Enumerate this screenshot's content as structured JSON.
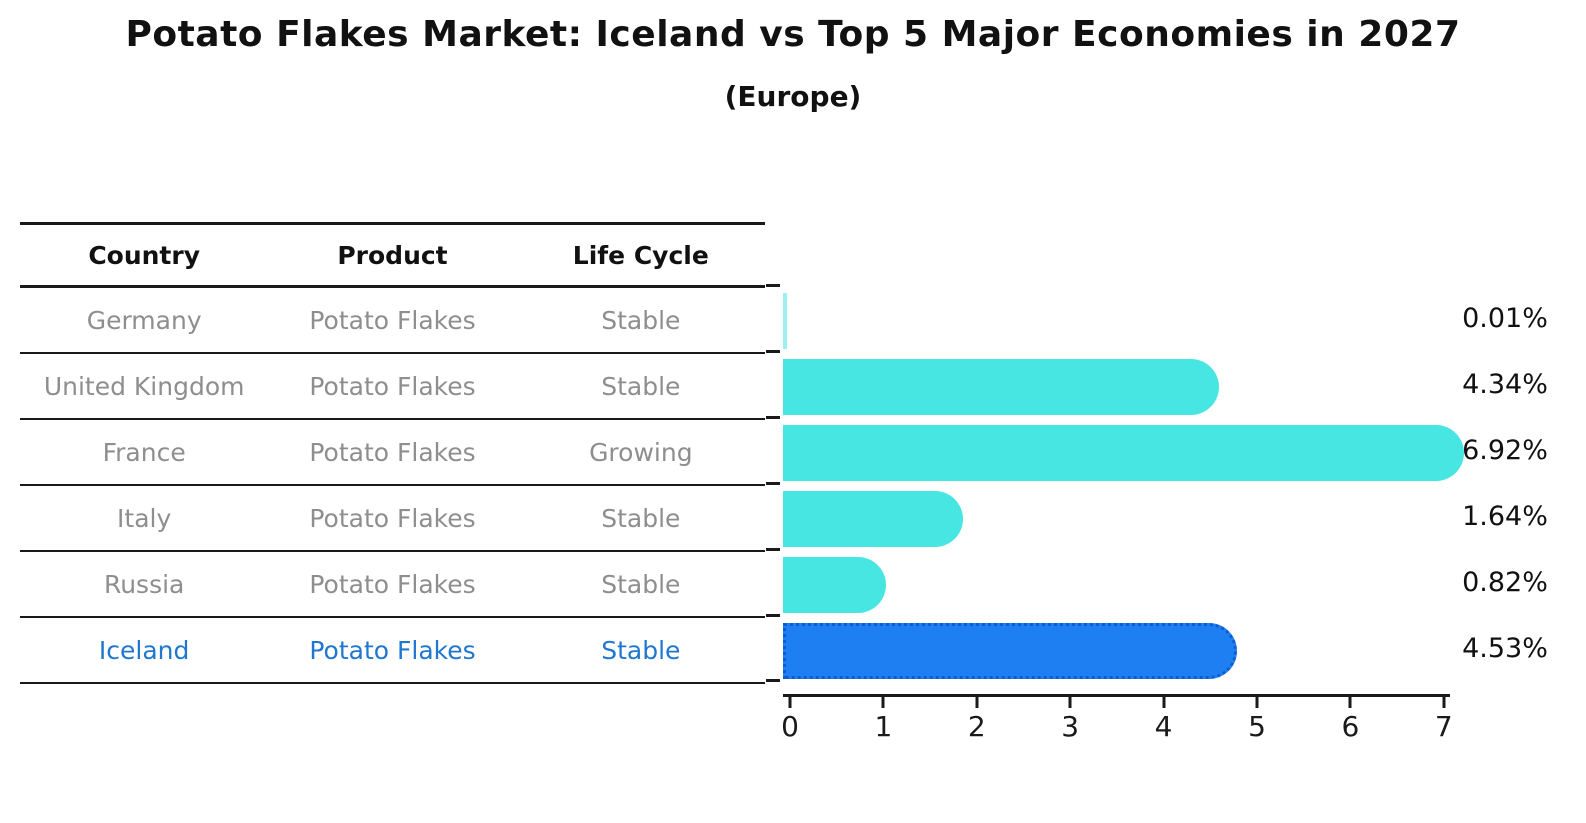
{
  "title": "Potato Flakes Market: Iceland vs Top 5 Major Economies in 2027",
  "subtitle": "(Europe)",
  "table": {
    "headers": {
      "country": "Country",
      "product": "Product",
      "life_cycle": "Life Cycle"
    },
    "rows": [
      {
        "country": "Germany",
        "product": "Potato Flakes",
        "life_cycle": "Stable",
        "highlighted": false
      },
      {
        "country": "United Kingdom",
        "product": "Potato Flakes",
        "life_cycle": "Stable",
        "highlighted": false
      },
      {
        "country": "France",
        "product": "Potato Flakes",
        "life_cycle": "Growing",
        "highlighted": false
      },
      {
        "country": "Italy",
        "product": "Potato Flakes",
        "life_cycle": "Stable",
        "highlighted": false
      },
      {
        "country": "Russia",
        "product": "Potato Flakes",
        "life_cycle": "Stable",
        "highlighted": false
      },
      {
        "country": "Iceland",
        "product": "Potato Flakes",
        "life_cycle": "Stable",
        "highlighted": true
      }
    ]
  },
  "chart_data": {
    "type": "bar",
    "orientation": "horizontal",
    "title": "Potato Flakes Market: Iceland vs Top 5 Major Economies in 2027 (Europe)",
    "categories": [
      "Germany",
      "United Kingdom",
      "France",
      "Italy",
      "Russia",
      "Iceland"
    ],
    "values": [
      0.01,
      4.34,
      6.92,
      1.64,
      0.82,
      4.53
    ],
    "value_labels": [
      "0.01%",
      "4.34%",
      "6.92%",
      "1.64%",
      "0.82%",
      "4.53%"
    ],
    "x_ticks": [
      "0",
      "1",
      "2",
      "3",
      "4",
      "5",
      "6",
      "7"
    ],
    "xlim": [
      0,
      7.15
    ],
    "xlabel": "",
    "ylabel": "",
    "grid": false,
    "legend": "none",
    "highlight_index": 5,
    "bar_color": "#48e6e2",
    "highlight_color": "#1e7ff2",
    "highlight_border_color": "#0d5cd0",
    "text_color": "#8e8e8e",
    "highlight_text_color": "#1f77cf"
  }
}
